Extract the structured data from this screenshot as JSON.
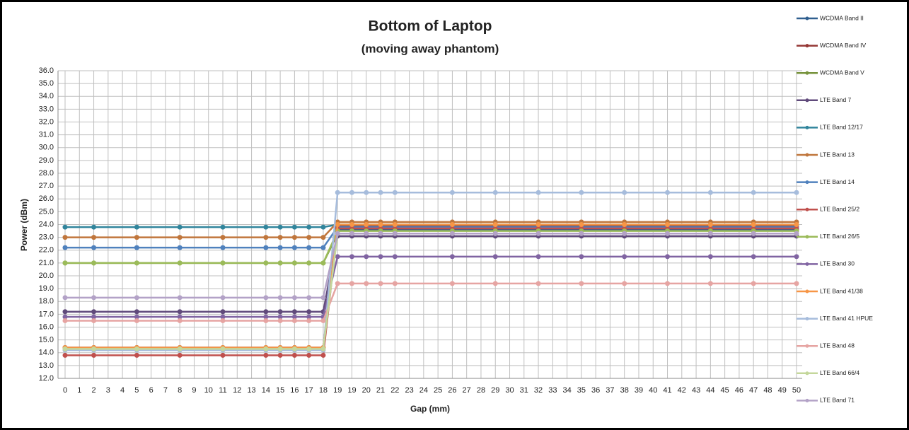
{
  "chart_data": {
    "type": "line",
    "title": "Bottom of Laptop",
    "subtitle": "(moving away phantom)",
    "x_label": "Gap (mm)",
    "y_label": "Power (dBm)",
    "categories": [
      "0",
      "1",
      "2",
      "3",
      "4",
      "5",
      "6",
      "7",
      "8",
      "9",
      "10",
      "11",
      "12",
      "13",
      "14",
      "15",
      "16",
      "17",
      "18",
      "19",
      "19",
      "20",
      "21",
      "22",
      "23",
      "24",
      "25",
      "26",
      "27",
      "28",
      "29",
      "30",
      "31",
      "32",
      "33",
      "34",
      "35",
      "36",
      "37",
      "38",
      "39",
      "40",
      "41",
      "42",
      "43",
      "44",
      "45",
      "46",
      "47",
      "48",
      "49",
      "50"
    ],
    "ylim": [
      12,
      36
    ],
    "yticks": [
      {
        "value": 12,
        "label": "12.0"
      },
      {
        "value": 13,
        "label": "13.0"
      },
      {
        "value": 14,
        "label": "14.0"
      },
      {
        "value": 15,
        "label": "15.0"
      },
      {
        "value": 16,
        "label": "16.0"
      },
      {
        "value": 17,
        "label": "17.0"
      },
      {
        "value": 18,
        "label": "18.0"
      },
      {
        "value": 19,
        "label": "19.0"
      },
      {
        "value": 20,
        "label": "20.0"
      },
      {
        "value": 21,
        "label": "21.0"
      },
      {
        "value": 22,
        "label": "22.0"
      },
      {
        "value": 23,
        "label": "23.0"
      },
      {
        "value": 24,
        "label": "24.0"
      },
      {
        "value": 25,
        "label": "25.0"
      },
      {
        "value": 26,
        "label": "26.0"
      },
      {
        "value": 27,
        "label": "27.0"
      },
      {
        "value": 28,
        "label": "28.0"
      },
      {
        "value": 29,
        "label": "29.0"
      },
      {
        "value": 30,
        "label": "30.0"
      },
      {
        "value": 31,
        "label": "31.0"
      },
      {
        "value": 32,
        "label": "32.0"
      },
      {
        "value": 33,
        "label": "33.0"
      },
      {
        "value": 34,
        "label": "34.0"
      },
      {
        "value": 35,
        "label": "35.0"
      },
      {
        "value": 36,
        "label": "36.0"
      }
    ],
    "grid": true,
    "legend": "right",
    "span_gaps": true,
    "series": [
      {
        "name": "WCDMA Band II",
        "color": "#2f5f8f",
        "values": [
          14.4,
          null,
          14.4,
          null,
          null,
          14.4,
          null,
          null,
          14.4,
          null,
          null,
          14.4,
          null,
          null,
          14.4,
          14.4,
          14.4,
          14.4,
          14.4,
          23.6,
          23.6,
          23.6,
          23.6,
          23.6,
          null,
          null,
          null,
          23.6,
          null,
          null,
          23.6,
          null,
          null,
          23.6,
          null,
          null,
          23.6,
          null,
          null,
          23.6,
          null,
          null,
          23.6,
          null,
          null,
          23.6,
          null,
          null,
          23.6,
          null,
          null,
          23.6
        ]
      },
      {
        "name": "WCDMA Band IV",
        "color": "#953735",
        "values": [
          14.4,
          null,
          14.4,
          null,
          null,
          14.4,
          null,
          null,
          14.4,
          null,
          null,
          14.4,
          null,
          null,
          14.4,
          14.4,
          14.4,
          14.4,
          14.4,
          23.9,
          23.9,
          23.9,
          23.9,
          23.9,
          null,
          null,
          null,
          23.9,
          null,
          null,
          23.9,
          null,
          null,
          23.9,
          null,
          null,
          23.9,
          null,
          null,
          23.9,
          null,
          null,
          23.9,
          null,
          null,
          23.9,
          null,
          null,
          23.9,
          null,
          null,
          23.9
        ]
      },
      {
        "name": "WCDMA Band V",
        "color": "#77933c",
        "values": [
          21,
          null,
          21,
          null,
          null,
          21,
          null,
          null,
          21,
          null,
          null,
          21,
          null,
          null,
          21,
          21,
          21,
          21,
          21,
          23.3,
          23.3,
          23.3,
          23.3,
          23.3,
          null,
          null,
          null,
          23.3,
          null,
          null,
          23.3,
          null,
          null,
          23.3,
          null,
          null,
          23.3,
          null,
          null,
          23.3,
          null,
          null,
          23.3,
          null,
          null,
          23.3,
          null,
          null,
          23.3,
          null,
          null,
          23.3
        ]
      },
      {
        "name": "LTE Band 7",
        "color": "#604a7b",
        "values": [
          17.2,
          null,
          17.2,
          null,
          null,
          17.2,
          null,
          null,
          17.2,
          null,
          null,
          17.2,
          null,
          null,
          17.2,
          17.2,
          17.2,
          17.2,
          17.2,
          23.1,
          23.1,
          23.1,
          23.1,
          23.1,
          null,
          null,
          null,
          23.1,
          null,
          null,
          23.1,
          null,
          null,
          23.1,
          null,
          null,
          23.1,
          null,
          null,
          23.1,
          null,
          null,
          23.1,
          null,
          null,
          23.1,
          null,
          null,
          23.1,
          null,
          null,
          23.1
        ]
      },
      {
        "name": "LTE Band 12/17",
        "color": "#31859c",
        "values": [
          23.8,
          null,
          23.8,
          null,
          null,
          23.8,
          null,
          null,
          23.8,
          null,
          null,
          23.8,
          null,
          null,
          23.8,
          23.8,
          23.8,
          23.8,
          23.8,
          24,
          24,
          24,
          24,
          24,
          null,
          null,
          null,
          24,
          null,
          null,
          24,
          null,
          null,
          24,
          null,
          null,
          24,
          null,
          null,
          24,
          null,
          null,
          24,
          null,
          null,
          24,
          null,
          null,
          24,
          null,
          null,
          24
        ]
      },
      {
        "name": "LTE Band 13",
        "color": "#c0763c",
        "values": [
          23,
          null,
          23,
          null,
          null,
          23,
          null,
          null,
          23,
          null,
          null,
          23,
          null,
          null,
          23,
          23,
          23,
          23,
          23,
          24.2,
          24.2,
          24.2,
          24.2,
          24.2,
          null,
          null,
          null,
          24.2,
          null,
          null,
          24.2,
          null,
          null,
          24.2,
          null,
          null,
          24.2,
          null,
          null,
          24.2,
          null,
          null,
          24.2,
          null,
          null,
          24.2,
          null,
          null,
          24.2,
          null,
          null,
          24.2
        ]
      },
      {
        "name": "LTE Band 14",
        "color": "#4f81bd",
        "values": [
          22.2,
          null,
          22.2,
          null,
          null,
          22.2,
          null,
          null,
          22.2,
          null,
          null,
          22.2,
          null,
          null,
          22.2,
          22.2,
          22.2,
          22.2,
          22.2,
          23.8,
          23.8,
          23.8,
          23.8,
          23.8,
          null,
          null,
          null,
          23.8,
          null,
          null,
          23.8,
          null,
          null,
          23.8,
          null,
          null,
          23.8,
          null,
          null,
          23.8,
          null,
          null,
          23.8,
          null,
          null,
          23.8,
          null,
          null,
          23.8,
          null,
          null,
          23.8
        ]
      },
      {
        "name": "LTE Band 25/2",
        "color": "#c0504d",
        "values": [
          13.8,
          null,
          13.8,
          null,
          null,
          13.8,
          null,
          null,
          13.8,
          null,
          null,
          13.8,
          null,
          null,
          13.8,
          13.8,
          13.8,
          13.8,
          13.8,
          23.7,
          23.7,
          23.7,
          23.7,
          23.7,
          null,
          null,
          null,
          23.7,
          null,
          null,
          23.7,
          null,
          null,
          23.7,
          null,
          null,
          23.7,
          null,
          null,
          23.7,
          null,
          null,
          23.7,
          null,
          null,
          23.7,
          null,
          null,
          23.7,
          null,
          null,
          23.7
        ]
      },
      {
        "name": "LTE Band 26/5",
        "color": "#9bbb59",
        "values": [
          21,
          null,
          21,
          null,
          null,
          21,
          null,
          null,
          21,
          null,
          null,
          21,
          null,
          null,
          21,
          21,
          21,
          21,
          21,
          23.5,
          23.5,
          23.5,
          23.5,
          23.5,
          null,
          null,
          null,
          23.5,
          null,
          null,
          23.5,
          null,
          null,
          23.5,
          null,
          null,
          23.5,
          null,
          null,
          23.5,
          null,
          null,
          23.5,
          null,
          null,
          23.5,
          null,
          null,
          23.5,
          null,
          null,
          23.5
        ]
      },
      {
        "name": "LTE Band 30",
        "color": "#8064a2",
        "values": [
          16.8,
          null,
          16.8,
          null,
          null,
          16.8,
          null,
          null,
          16.8,
          null,
          null,
          16.8,
          null,
          null,
          16.8,
          16.8,
          16.8,
          16.8,
          16.8,
          21.5,
          21.5,
          21.5,
          21.5,
          21.5,
          null,
          null,
          null,
          21.5,
          null,
          null,
          21.5,
          null,
          null,
          21.5,
          null,
          null,
          21.5,
          null,
          null,
          21.5,
          null,
          null,
          21.5,
          null,
          null,
          21.5,
          null,
          null,
          21.5,
          null,
          null,
          21.5
        ]
      },
      {
        "name": "LTE Band 41/38",
        "color": "#f79646",
        "values": [
          14.4,
          null,
          14.4,
          null,
          null,
          14.4,
          null,
          null,
          14.4,
          null,
          null,
          14.4,
          null,
          null,
          14.4,
          14.4,
          14.4,
          14.4,
          14.4,
          24,
          24,
          24,
          24,
          24,
          null,
          null,
          null,
          24,
          null,
          null,
          24,
          null,
          null,
          24,
          null,
          null,
          24,
          null,
          null,
          24,
          null,
          null,
          24,
          null,
          null,
          24,
          null,
          null,
          24,
          null,
          null,
          24
        ]
      },
      {
        "name": "LTE Band 41 HPUE",
        "color": "#a6bcdc",
        "values": [
          14.2,
          null,
          14.2,
          null,
          null,
          14.2,
          null,
          null,
          14.2,
          null,
          null,
          14.2,
          null,
          null,
          14.2,
          14.2,
          14.2,
          14.2,
          14.2,
          26.5,
          26.5,
          26.5,
          26.5,
          26.5,
          null,
          null,
          null,
          26.5,
          null,
          null,
          26.5,
          null,
          null,
          26.5,
          null,
          null,
          26.5,
          null,
          null,
          26.5,
          null,
          null,
          26.5,
          null,
          null,
          26.5,
          null,
          null,
          26.5,
          null,
          null,
          26.5
        ]
      },
      {
        "name": "LTE Band 48",
        "color": "#e6a4a2",
        "values": [
          16.5,
          null,
          16.5,
          null,
          null,
          16.5,
          null,
          null,
          16.5,
          null,
          null,
          16.5,
          null,
          null,
          16.5,
          16.5,
          16.5,
          16.5,
          16.5,
          19.4,
          19.4,
          19.4,
          19.4,
          19.4,
          null,
          null,
          null,
          19.4,
          null,
          null,
          19.4,
          null,
          null,
          19.4,
          null,
          null,
          19.4,
          null,
          null,
          19.4,
          null,
          null,
          19.4,
          null,
          null,
          19.4,
          null,
          null,
          19.4,
          null,
          null,
          19.4
        ]
      },
      {
        "name": "LTE Band 66/4",
        "color": "#c4d79b",
        "values": [
          14.3,
          null,
          14.3,
          null,
          null,
          14.3,
          null,
          null,
          14.3,
          null,
          null,
          14.3,
          null,
          null,
          14.3,
          14.3,
          14.3,
          14.3,
          14.3,
          23.3,
          23.3,
          23.3,
          23.3,
          23.3,
          null,
          null,
          null,
          23.3,
          null,
          null,
          23.3,
          null,
          null,
          23.3,
          null,
          null,
          23.3,
          null,
          null,
          23.3,
          null,
          null,
          23.3,
          null,
          null,
          23.3,
          null,
          null,
          23.3,
          null,
          null,
          23.3
        ]
      },
      {
        "name": "LTE Band 71",
        "color": "#b3a2c7",
        "values": [
          18.3,
          null,
          18.3,
          null,
          null,
          18.3,
          null,
          null,
          18.3,
          null,
          null,
          18.3,
          null,
          null,
          18.3,
          18.3,
          18.3,
          18.3,
          18.3,
          23.3,
          23.3,
          23.3,
          23.3,
          23.3,
          null,
          null,
          null,
          23.3,
          null,
          null,
          23.3,
          null,
          null,
          23.3,
          null,
          null,
          23.3,
          null,
          null,
          23.3,
          null,
          null,
          23.3,
          null,
          null,
          23.3,
          null,
          null,
          23.3,
          null,
          null,
          23.3
        ]
      }
    ]
  }
}
